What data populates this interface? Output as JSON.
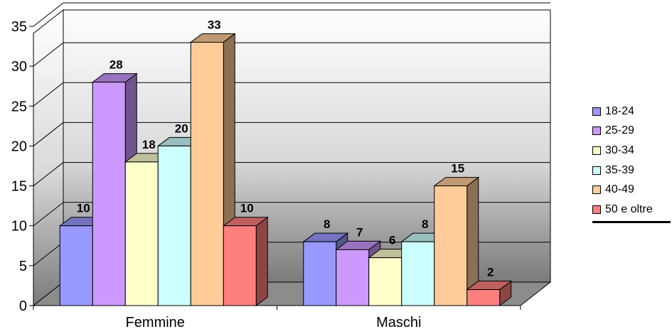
{
  "chart_data": {
    "type": "bar",
    "categories": [
      "Femmine",
      "Maschi"
    ],
    "series": [
      {
        "name": "18-24",
        "values": [
          10,
          8
        ],
        "color": "#9999FF"
      },
      {
        "name": "25-29",
        "values": [
          28,
          7
        ],
        "color": "#CC99FF"
      },
      {
        "name": "30-34",
        "values": [
          18,
          6
        ],
        "color": "#FFFFCC"
      },
      {
        "name": "35-39",
        "values": [
          20,
          8
        ],
        "color": "#CCFFFF"
      },
      {
        "name": "40-49",
        "values": [
          33,
          15
        ],
        "color": "#FFCC99"
      },
      {
        "name": "50 e oltre",
        "values": [
          10,
          2
        ],
        "color": "#FF7F7F"
      }
    ],
    "yticks": [
      "0",
      "5",
      "10",
      "15",
      "20",
      "25",
      "30",
      "35"
    ],
    "ylim": [
      0,
      35
    ],
    "grid": true,
    "legend_position": "right",
    "style": "3d"
  }
}
